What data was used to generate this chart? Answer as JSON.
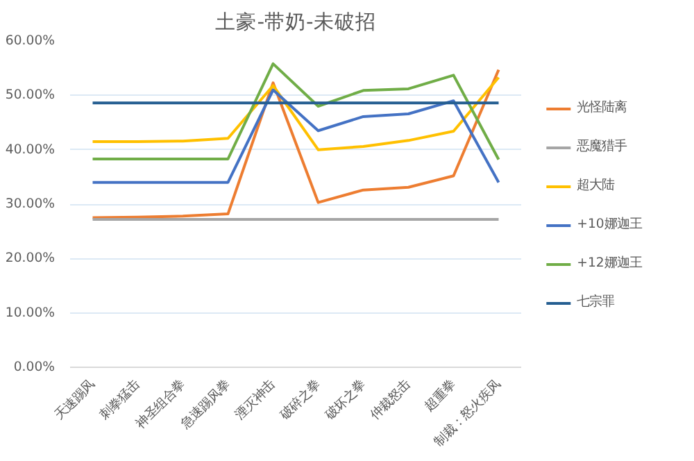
{
  "chart_data": {
    "type": "line",
    "title": "土豪-带奶-未破招",
    "categories": [
      "天速踢风",
      "刺拳猛击",
      "神圣组合拳",
      "急速踢风拳",
      "湮灭神击",
      "破碎之拳",
      "破坏之拳",
      "仲裁怒击",
      "超重拳",
      "制裁：怒火疾风"
    ],
    "series": [
      {
        "name": "光怪陆离",
        "color": "#ed7d31",
        "values": [
          27.5,
          27.6,
          27.8,
          28.2,
          52.3,
          30.3,
          32.6,
          33.1,
          35.2,
          54.7
        ]
      },
      {
        "name": "恶魔猎手",
        "color": "#a5a5a5",
        "values": [
          27.2,
          27.2,
          27.2,
          27.2,
          27.2,
          27.2,
          27.2,
          27.2,
          27.2,
          27.2
        ]
      },
      {
        "name": "超大陆",
        "color": "#ffc000",
        "values": [
          41.5,
          41.5,
          41.6,
          42.1,
          51.8,
          40.0,
          40.6,
          41.7,
          43.4,
          53.3
        ]
      },
      {
        "name": "+10娜迦王",
        "color": "#4472c4",
        "values": [
          34.0,
          34.0,
          34.0,
          34.0,
          51.0,
          43.5,
          46.1,
          46.6,
          49.0,
          34.0
        ]
      },
      {
        "name": "+12娜迦王",
        "color": "#70ad47",
        "values": [
          38.3,
          38.3,
          38.3,
          38.3,
          55.8,
          48.0,
          50.9,
          51.2,
          53.7,
          38.2
        ]
      },
      {
        "name": "七宗罪",
        "color": "#255e91",
        "values": [
          48.6,
          48.6,
          48.6,
          48.6,
          48.6,
          48.6,
          48.6,
          48.6,
          48.6,
          48.6
        ]
      }
    ],
    "ylim": [
      0,
      60
    ],
    "yticks": [
      {
        "value": 0,
        "label": "0.00%"
      },
      {
        "value": 10,
        "label": "10.00%"
      },
      {
        "value": 20,
        "label": "20.00%"
      },
      {
        "value": 30,
        "label": "30.00%"
      },
      {
        "value": 40,
        "label": "40.00%"
      },
      {
        "value": 50,
        "label": "50.00%"
      },
      {
        "value": 60,
        "label": "60.00%"
      }
    ],
    "grid": "y",
    "legend": "right",
    "marker": "none",
    "line_style": "solid"
  }
}
